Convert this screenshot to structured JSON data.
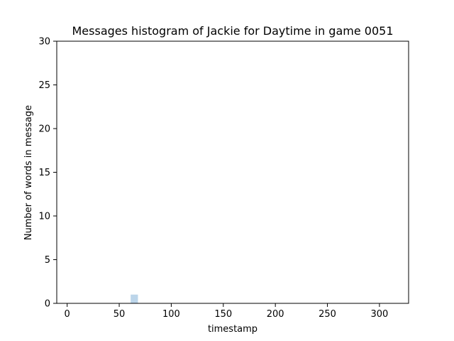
{
  "chart_data": {
    "type": "bar",
    "title": "Messages histogram of Jackie for Daytime in game 0051",
    "xlabel": "timestamp",
    "ylabel": "Number of words in message",
    "xlim": [
      -10,
      328
    ],
    "ylim": [
      0,
      30
    ],
    "x_ticks": [
      0,
      50,
      100,
      150,
      200,
      250,
      300
    ],
    "y_ticks": [
      0,
      5,
      10,
      15,
      20,
      25,
      30
    ],
    "grid": false,
    "bars": [
      {
        "x_start": 61,
        "x_end": 68,
        "value": 1
      }
    ],
    "bar_color": "#bcd5ea"
  }
}
